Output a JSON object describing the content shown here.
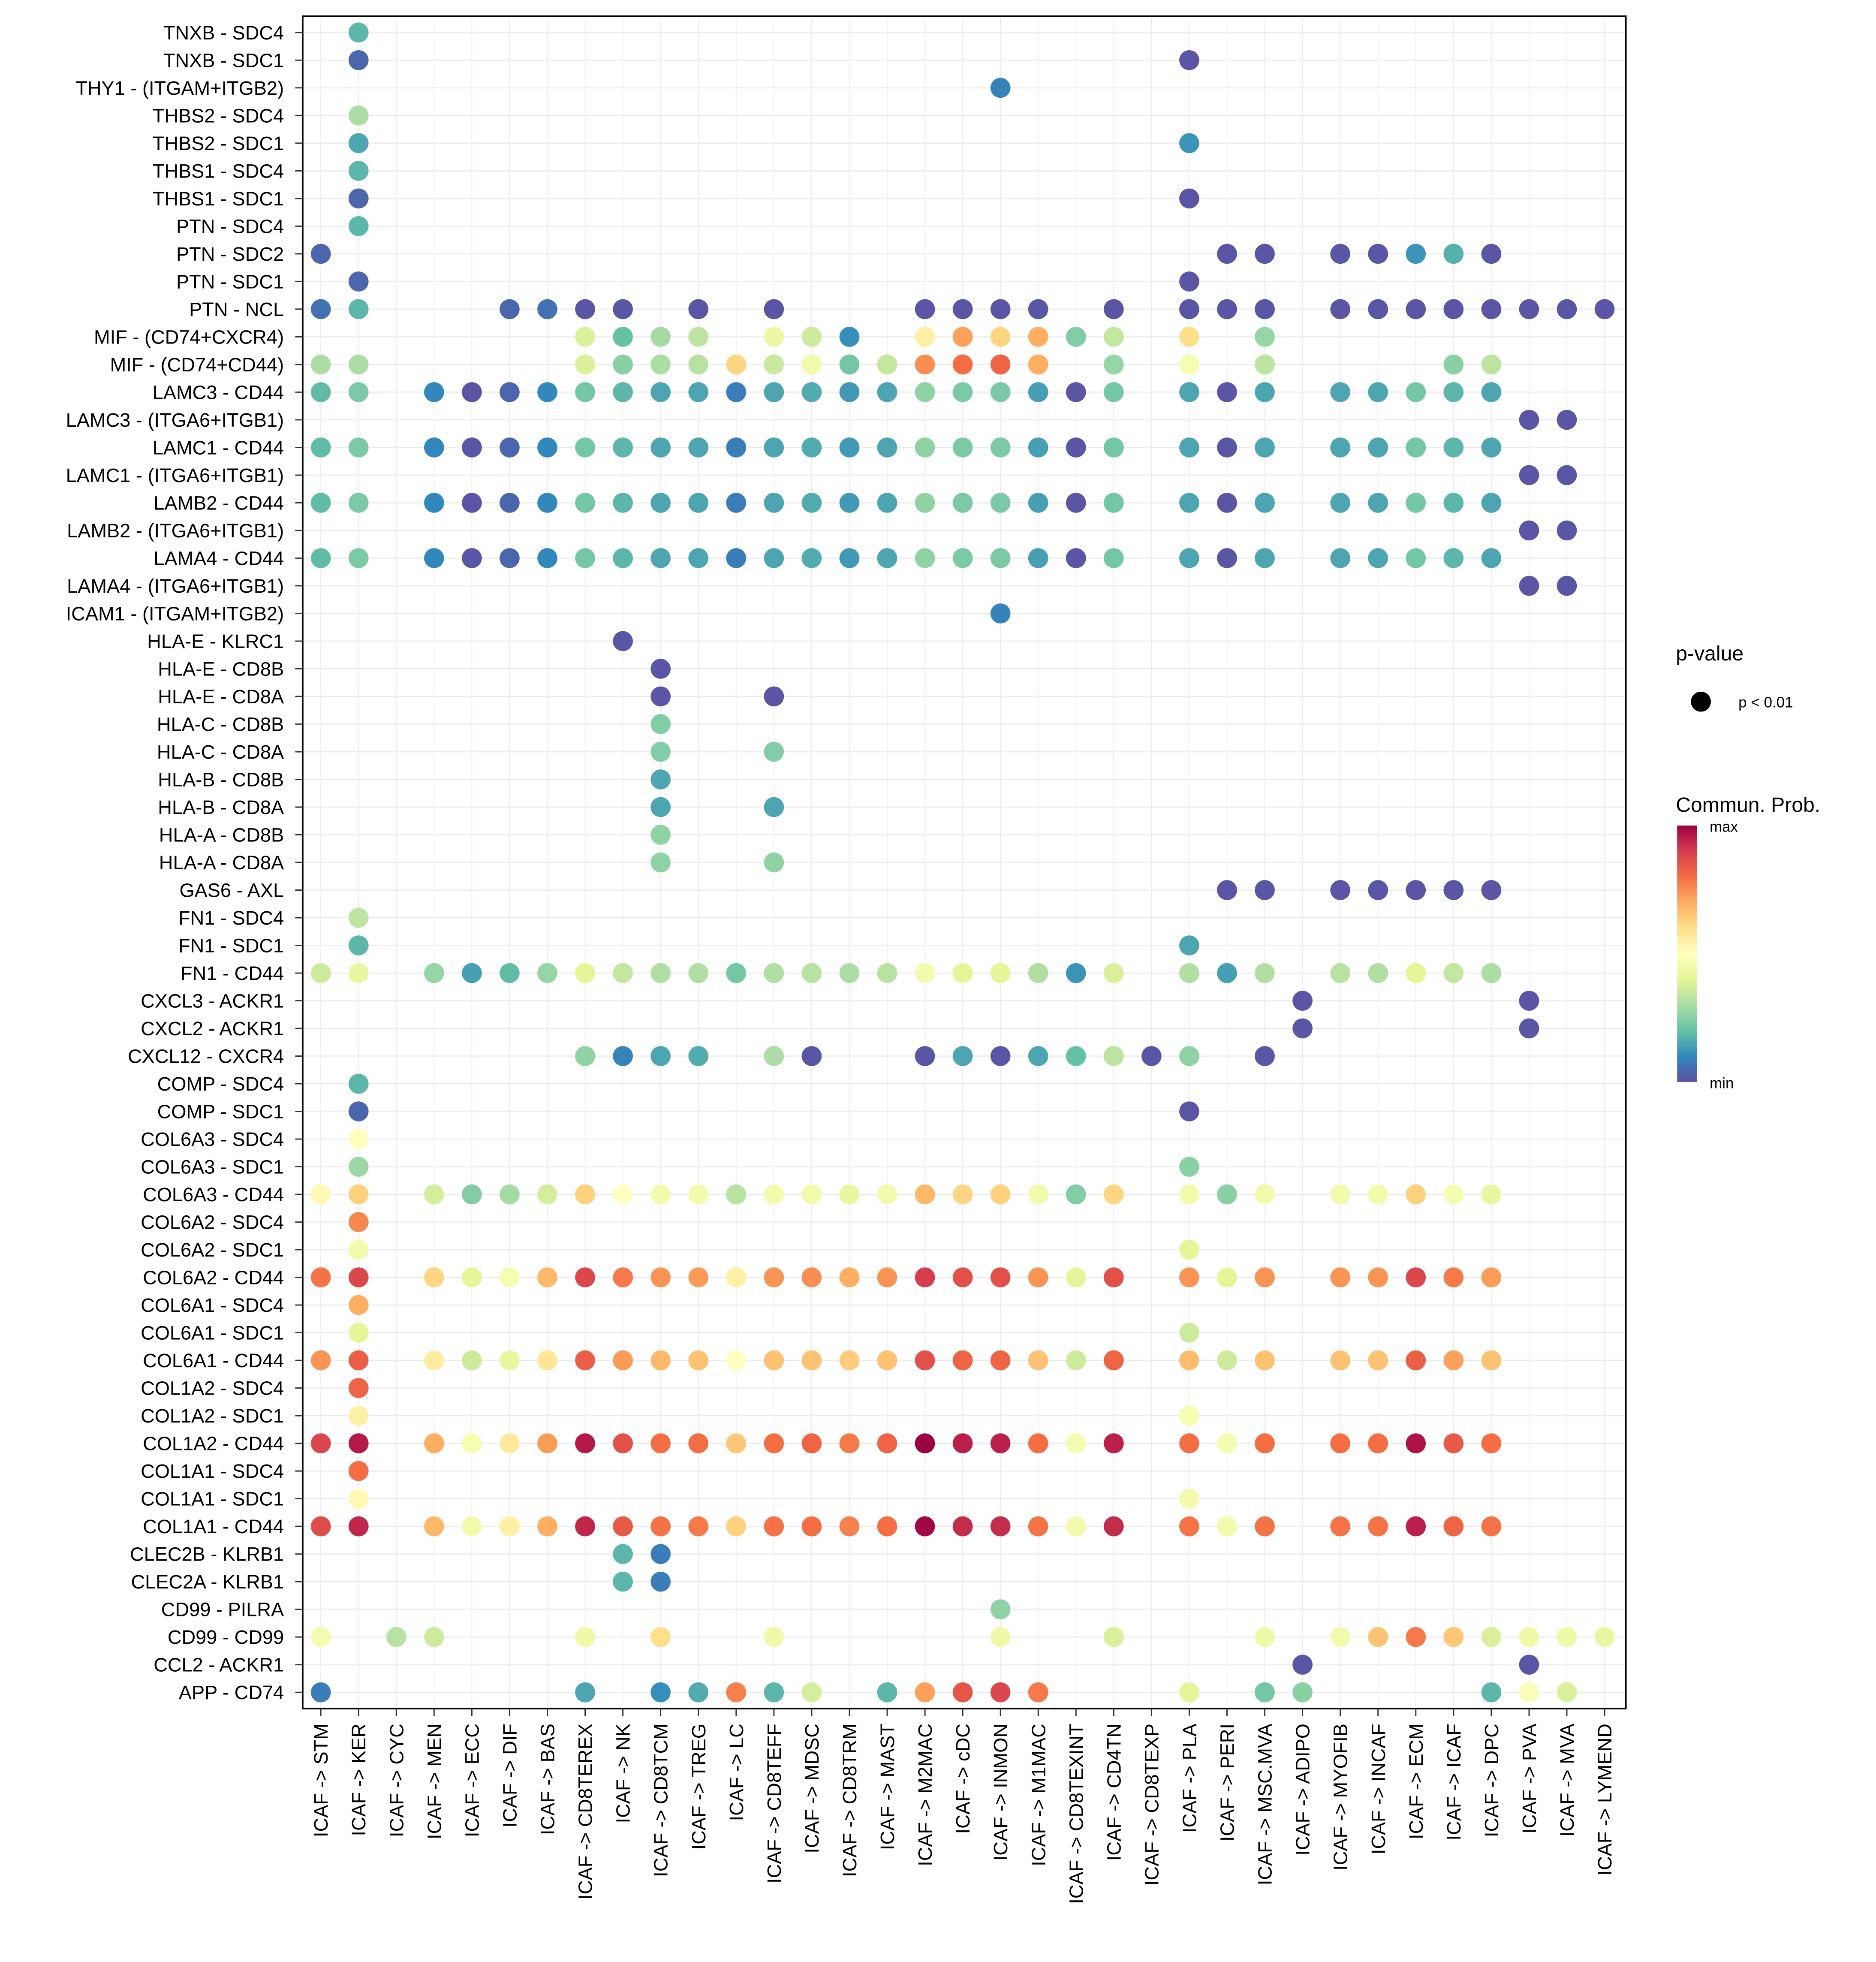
{
  "chart_data": {
    "type": "dot",
    "title": "",
    "xlabel": "",
    "ylabel": "",
    "grid": true,
    "legend_placement": "right",
    "x_categories": [
      "ICAF -> STM",
      "ICAF -> KER",
      "ICAF -> CYC",
      "ICAF -> MEN",
      "ICAF -> ECC",
      "ICAF -> DIF",
      "ICAF -> BAS",
      "ICAF -> CD8TEREX",
      "ICAF -> NK",
      "ICAF -> CD8TCM",
      "ICAF -> TREG",
      "ICAF -> LC",
      "ICAF -> CD8TEFF",
      "ICAF -> MDSC",
      "ICAF -> CD8TRM",
      "ICAF -> MAST",
      "ICAF -> M2MAC",
      "ICAF -> cDC",
      "ICAF -> INMON",
      "ICAF -> M1MAC",
      "ICAF -> CD8TEXINT",
      "ICAF -> CD4TN",
      "ICAF -> CD8TEXP",
      "ICAF -> PLA",
      "ICAF -> PERI",
      "ICAF -> MSC.MVA",
      "ICAF -> ADIPO",
      "ICAF -> MYOFIB",
      "ICAF -> INCAF",
      "ICAF -> ECM",
      "ICAF -> ICAF",
      "ICAF -> DPC",
      "ICAF -> PVA",
      "ICAF -> MVA",
      "ICAF -> LYMEND"
    ],
    "value_scale": {
      "min_label": "min",
      "max_label": "max",
      "range": [
        0,
        1
      ]
    },
    "colormap_stops": [
      "#5E4FA2",
      "#3288BD",
      "#66C2A5",
      "#ABDDA4",
      "#E6F598",
      "#FFFFBF",
      "#FEE08B",
      "#FDAE61",
      "#F46D43",
      "#D53E4F",
      "#9E0142"
    ],
    "rows": [
      {
        "pair": "TNXB - SDC4",
        "values": {
          "1": 0.18
        }
      },
      {
        "pair": "TNXB - SDC1",
        "values": {
          "1": 0.04,
          "23": 0.01
        }
      },
      {
        "pair": "THY1 - (ITGAM+ITGB2)",
        "values": {
          "18": 0.09
        }
      },
      {
        "pair": "THBS2 - SDC4",
        "values": {
          "1": 0.3
        }
      },
      {
        "pair": "THBS2 - SDC1",
        "values": {
          "1": 0.15,
          "23": 0.12
        }
      },
      {
        "pair": "THBS1 - SDC4",
        "values": {
          "1": 0.18
        }
      },
      {
        "pair": "THBS1 - SDC1",
        "values": {
          "1": 0.04,
          "23": 0.01
        }
      },
      {
        "pair": "PTN - SDC4",
        "values": {
          "1": 0.18
        }
      },
      {
        "pair": "PTN - SDC2",
        "values": {
          "0": 0.04,
          "24": 0.01,
          "25": 0.01,
          "27": 0.01,
          "28": 0.01,
          "29": 0.12,
          "30": 0.17,
          "31": 0.01
        }
      },
      {
        "pair": "PTN - SDC1",
        "values": {
          "1": 0.04,
          "23": 0.01
        }
      },
      {
        "pair": "PTN - NCL",
        "values": {
          "0": 0.06,
          "1": 0.18,
          "5": 0.04,
          "6": 0.06,
          "7": 0.01,
          "8": 0.01,
          "10": 0.01,
          "12": 0.01,
          "16": 0.01,
          "17": 0.01,
          "18": 0.01,
          "19": 0.01,
          "21": 0.01,
          "23": 0.01,
          "24": 0.01,
          "25": 0.01,
          "27": 0.01,
          "28": 0.01,
          "29": 0.01,
          "30": 0.01,
          "31": 0.01,
          "32": 0.01,
          "33": 0.01,
          "34": 0.01
        }
      },
      {
        "pair": "MIF - (CD74+CXCR4)",
        "values": {
          "7": 0.38,
          "8": 0.2,
          "9": 0.29,
          "10": 0.33,
          "12": 0.43,
          "13": 0.36,
          "14": 0.11,
          "16": 0.55,
          "17": 0.72,
          "18": 0.62,
          "19": 0.7,
          "20": 0.24,
          "21": 0.34,
          "23": 0.6,
          "25": 0.27
        }
      },
      {
        "pair": "MIF - (CD74+CD44)",
        "values": {
          "0": 0.3,
          "1": 0.3,
          "7": 0.38,
          "8": 0.25,
          "9": 0.3,
          "10": 0.32,
          "11": 0.62,
          "12": 0.35,
          "13": 0.45,
          "14": 0.22,
          "15": 0.34,
          "16": 0.75,
          "17": 0.8,
          "18": 0.82,
          "19": 0.7,
          "21": 0.27,
          "23": 0.47,
          "25": 0.33,
          "30": 0.25,
          "31": 0.33
        }
      },
      {
        "pair": "LAMC3 - CD44",
        "values": {
          "0": 0.19,
          "1": 0.23,
          "3": 0.1,
          "4": 0.01,
          "5": 0.04,
          "6": 0.1,
          "7": 0.22,
          "8": 0.18,
          "9": 0.15,
          "10": 0.15,
          "11": 0.08,
          "12": 0.15,
          "13": 0.16,
          "14": 0.13,
          "15": 0.15,
          "16": 0.26,
          "17": 0.23,
          "18": 0.23,
          "19": 0.14,
          "20": 0.01,
          "21": 0.22,
          "23": 0.15,
          "24": 0.01,
          "25": 0.15,
          "27": 0.15,
          "28": 0.15,
          "29": 0.22,
          "30": 0.18,
          "31": 0.15
        }
      },
      {
        "pair": "LAMC3 - (ITGA6+ITGB1)",
        "values": {
          "32": 0.01,
          "33": 0.01
        }
      },
      {
        "pair": "LAMC1 - CD44",
        "values": {
          "0": 0.19,
          "1": 0.23,
          "3": 0.1,
          "4": 0.01,
          "5": 0.04,
          "6": 0.1,
          "7": 0.22,
          "8": 0.18,
          "9": 0.15,
          "10": 0.15,
          "11": 0.08,
          "12": 0.15,
          "13": 0.16,
          "14": 0.13,
          "15": 0.15,
          "16": 0.26,
          "17": 0.23,
          "18": 0.23,
          "19": 0.14,
          "20": 0.01,
          "21": 0.22,
          "23": 0.15,
          "24": 0.01,
          "25": 0.15,
          "27": 0.15,
          "28": 0.15,
          "29": 0.22,
          "30": 0.18,
          "31": 0.15
        }
      },
      {
        "pair": "LAMC1 - (ITGA6+ITGB1)",
        "values": {
          "32": 0.01,
          "33": 0.01
        }
      },
      {
        "pair": "LAMB2 - CD44",
        "values": {
          "0": 0.19,
          "1": 0.23,
          "3": 0.1,
          "4": 0.01,
          "5": 0.04,
          "6": 0.1,
          "7": 0.22,
          "8": 0.18,
          "9": 0.15,
          "10": 0.15,
          "11": 0.08,
          "12": 0.15,
          "13": 0.16,
          "14": 0.13,
          "15": 0.15,
          "16": 0.26,
          "17": 0.23,
          "18": 0.23,
          "19": 0.14,
          "20": 0.01,
          "21": 0.22,
          "23": 0.15,
          "24": 0.01,
          "25": 0.15,
          "27": 0.15,
          "28": 0.15,
          "29": 0.22,
          "30": 0.18,
          "31": 0.15
        }
      },
      {
        "pair": "LAMB2 - (ITGA6+ITGB1)",
        "values": {
          "32": 0.01,
          "33": 0.01
        }
      },
      {
        "pair": "LAMA4 - CD44",
        "values": {
          "0": 0.19,
          "1": 0.23,
          "3": 0.1,
          "4": 0.01,
          "5": 0.04,
          "6": 0.1,
          "7": 0.22,
          "8": 0.18,
          "9": 0.15,
          "10": 0.15,
          "11": 0.08,
          "12": 0.15,
          "13": 0.16,
          "14": 0.13,
          "15": 0.15,
          "16": 0.26,
          "17": 0.23,
          "18": 0.23,
          "19": 0.14,
          "20": 0.01,
          "21": 0.22,
          "23": 0.15,
          "24": 0.01,
          "25": 0.15,
          "27": 0.15,
          "28": 0.15,
          "29": 0.22,
          "30": 0.18,
          "31": 0.15
        }
      },
      {
        "pair": "LAMA4 - (ITGA6+ITGB1)",
        "values": {
          "32": 0.01,
          "33": 0.01
        }
      },
      {
        "pair": "ICAM1 - (ITGAM+ITGB2)",
        "values": {
          "18": 0.09
        }
      },
      {
        "pair": "HLA-E - KLRC1",
        "values": {
          "8": 0.01
        }
      },
      {
        "pair": "HLA-E - CD8B",
        "values": {
          "9": 0.01
        }
      },
      {
        "pair": "HLA-E - CD8A",
        "values": {
          "9": 0.01,
          "12": 0.01
        }
      },
      {
        "pair": "HLA-C - CD8B",
        "values": {
          "9": 0.24
        }
      },
      {
        "pair": "HLA-C - CD8A",
        "values": {
          "9": 0.24,
          "12": 0.24
        }
      },
      {
        "pair": "HLA-B - CD8B",
        "values": {
          "9": 0.15
        }
      },
      {
        "pair": "HLA-B - CD8A",
        "values": {
          "9": 0.15,
          "12": 0.15
        }
      },
      {
        "pair": "HLA-A - CD8B",
        "values": {
          "9": 0.26
        }
      },
      {
        "pair": "HLA-A - CD8A",
        "values": {
          "9": 0.26,
          "12": 0.26
        }
      },
      {
        "pair": "GAS6 - AXL",
        "values": {
          "24": 0.01,
          "25": 0.01,
          "27": 0.01,
          "28": 0.01,
          "29": 0.01,
          "30": 0.01,
          "31": 0.01
        }
      },
      {
        "pair": "FN1 - SDC4",
        "values": {
          "1": 0.33
        }
      },
      {
        "pair": "FN1 - SDC1",
        "values": {
          "1": 0.18,
          "23": 0.15
        }
      },
      {
        "pair": "FN1 - CD44",
        "values": {
          "0": 0.36,
          "1": 0.42,
          "3": 0.27,
          "4": 0.14,
          "5": 0.19,
          "6": 0.27,
          "7": 0.4,
          "8": 0.34,
          "9": 0.31,
          "10": 0.31,
          "11": 0.22,
          "12": 0.31,
          "13": 0.32,
          "14": 0.3,
          "15": 0.32,
          "16": 0.45,
          "17": 0.4,
          "18": 0.4,
          "19": 0.31,
          "20": 0.12,
          "21": 0.38,
          "23": 0.31,
          "24": 0.14,
          "25": 0.31,
          "27": 0.32,
          "28": 0.31,
          "29": 0.4,
          "30": 0.34,
          "31": 0.3
        }
      },
      {
        "pair": "CXCL3 - ACKR1",
        "values": {
          "26": 0.01,
          "32": 0.01
        }
      },
      {
        "pair": "CXCL2 - ACKR1",
        "values": {
          "26": 0.01,
          "32": 0.01
        }
      },
      {
        "pair": "CXCL12 - CXCR4",
        "values": {
          "7": 0.26,
          "8": 0.09,
          "9": 0.15,
          "10": 0.16,
          "12": 0.3,
          "13": 0.01,
          "16": 0.01,
          "17": 0.15,
          "18": 0.01,
          "19": 0.15,
          "20": 0.2,
          "21": 0.33,
          "22": 0.01,
          "23": 0.26,
          "25": 0.01
        }
      },
      {
        "pair": "COMP - SDC4",
        "values": {
          "1": 0.18
        }
      },
      {
        "pair": "COMP - SDC1",
        "values": {
          "1": 0.04,
          "23": 0.01
        }
      },
      {
        "pair": "COL6A3 - SDC4",
        "values": {
          "1": 0.5
        }
      },
      {
        "pair": "COL6A3 - SDC1",
        "values": {
          "1": 0.28,
          "23": 0.25
        }
      },
      {
        "pair": "COL6A3 - CD44",
        "values": {
          "0": 0.52,
          "1": 0.63,
          "3": 0.37,
          "4": 0.24,
          "5": 0.29,
          "6": 0.37,
          "7": 0.63,
          "8": 0.5,
          "9": 0.45,
          "10": 0.45,
          "11": 0.32,
          "12": 0.45,
          "13": 0.45,
          "14": 0.42,
          "15": 0.45,
          "16": 0.68,
          "17": 0.62,
          "18": 0.63,
          "19": 0.45,
          "20": 0.24,
          "21": 0.62,
          "23": 0.45,
          "24": 0.25,
          "25": 0.45,
          "27": 0.45,
          "28": 0.45,
          "29": 0.63,
          "30": 0.46,
          "31": 0.42
        }
      },
      {
        "pair": "COL6A2 - SDC4",
        "values": {
          "1": 0.76
        }
      },
      {
        "pair": "COL6A2 - SDC1",
        "values": {
          "1": 0.45,
          "23": 0.4
        }
      },
      {
        "pair": "COL6A2 - CD44",
        "values": {
          "0": 0.79,
          "1": 0.88,
          "3": 0.62,
          "4": 0.4,
          "5": 0.47,
          "6": 0.68,
          "7": 0.88,
          "8": 0.78,
          "9": 0.74,
          "10": 0.73,
          "11": 0.55,
          "12": 0.74,
          "13": 0.75,
          "14": 0.7,
          "15": 0.74,
          "16": 0.9,
          "17": 0.86,
          "18": 0.86,
          "19": 0.74,
          "20": 0.4,
          "21": 0.86,
          "23": 0.74,
          "24": 0.4,
          "25": 0.74,
          "27": 0.74,
          "28": 0.74,
          "29": 0.88,
          "30": 0.78,
          "31": 0.73
        }
      },
      {
        "pair": "COL6A1 - SDC4",
        "values": {
          "1": 0.7
        }
      },
      {
        "pair": "COL6A1 - SDC1",
        "values": {
          "1": 0.4,
          "23": 0.36
        }
      },
      {
        "pair": "COL6A1 - CD44",
        "values": {
          "0": 0.74,
          "1": 0.83,
          "3": 0.56,
          "4": 0.36,
          "5": 0.42,
          "6": 0.58,
          "7": 0.83,
          "8": 0.73,
          "9": 0.68,
          "10": 0.66,
          "11": 0.5,
          "12": 0.66,
          "13": 0.66,
          "14": 0.64,
          "15": 0.66,
          "16": 0.86,
          "17": 0.82,
          "18": 0.82,
          "19": 0.66,
          "20": 0.36,
          "21": 0.82,
          "23": 0.67,
          "24": 0.36,
          "25": 0.66,
          "27": 0.66,
          "28": 0.66,
          "29": 0.83,
          "30": 0.72,
          "31": 0.66
        }
      },
      {
        "pair": "COL1A2 - SDC4",
        "values": {
          "1": 0.82
        }
      },
      {
        "pair": "COL1A2 - SDC1",
        "values": {
          "1": 0.55,
          "23": 0.47
        }
      },
      {
        "pair": "COL1A2 - CD44",
        "values": {
          "0": 0.88,
          "1": 0.96,
          "3": 0.7,
          "4": 0.47,
          "5": 0.57,
          "6": 0.73,
          "7": 0.96,
          "8": 0.86,
          "9": 0.8,
          "10": 0.8,
          "11": 0.65,
          "12": 0.8,
          "13": 0.82,
          "14": 0.78,
          "15": 0.82,
          "16": 1.0,
          "17": 0.95,
          "18": 0.95,
          "19": 0.8,
          "20": 0.46,
          "21": 0.95,
          "23": 0.8,
          "24": 0.46,
          "25": 0.8,
          "27": 0.8,
          "28": 0.8,
          "29": 0.97,
          "30": 0.84,
          "31": 0.8
        }
      },
      {
        "pair": "COL1A1 - SDC4",
        "values": {
          "1": 0.8
        }
      },
      {
        "pair": "COL1A1 - SDC1",
        "values": {
          "1": 0.52,
          "23": 0.45
        }
      },
      {
        "pair": "COL1A1 - CD44",
        "values": {
          "0": 0.87,
          "1": 0.94,
          "3": 0.68,
          "4": 0.45,
          "5": 0.55,
          "6": 0.7,
          "7": 0.94,
          "8": 0.84,
          "9": 0.79,
          "10": 0.78,
          "11": 0.63,
          "12": 0.79,
          "13": 0.8,
          "14": 0.77,
          "15": 0.8,
          "16": 0.99,
          "17": 0.93,
          "18": 0.93,
          "19": 0.79,
          "20": 0.45,
          "21": 0.93,
          "23": 0.79,
          "24": 0.45,
          "25": 0.79,
          "27": 0.79,
          "28": 0.79,
          "29": 0.95,
          "30": 0.82,
          "31": 0.79
        }
      },
      {
        "pair": "CLEC2B - KLRB1",
        "values": {
          "8": 0.18,
          "9": 0.08
        }
      },
      {
        "pair": "CLEC2A - KLRB1",
        "values": {
          "8": 0.18,
          "9": 0.08
        }
      },
      {
        "pair": "CD99 - PILRA",
        "values": {
          "18": 0.26
        }
      },
      {
        "pair": "CD99 - CD99",
        "values": {
          "0": 0.46,
          "2": 0.32,
          "3": 0.36,
          "7": 0.44,
          "9": 0.6,
          "12": 0.44,
          "18": 0.44,
          "21": 0.38,
          "25": 0.44,
          "27": 0.45,
          "28": 0.66,
          "29": 0.78,
          "30": 0.65,
          "31": 0.38,
          "32": 0.44,
          "33": 0.44,
          "34": 0.42
        }
      },
      {
        "pair": "CCL2 - ACKR1",
        "values": {
          "26": 0.01,
          "32": 0.01
        }
      },
      {
        "pair": "APP - CD74",
        "values": {
          "0": 0.08,
          "7": 0.15,
          "9": 0.11,
          "10": 0.16,
          "11": 0.77,
          "12": 0.18,
          "13": 0.37,
          "15": 0.18,
          "16": 0.72,
          "17": 0.85,
          "18": 0.88,
          "19": 0.78,
          "23": 0.4,
          "25": 0.22,
          "26": 0.25,
          "31": 0.18,
          "32": 0.48,
          "33": 0.38
        }
      }
    ]
  },
  "legend": {
    "pvalue_title": "p-value",
    "pvalue_entry": "p < 0.01",
    "colorbar_title": "Commun. Prob.",
    "colorbar_max": "max",
    "colorbar_min": "min"
  }
}
